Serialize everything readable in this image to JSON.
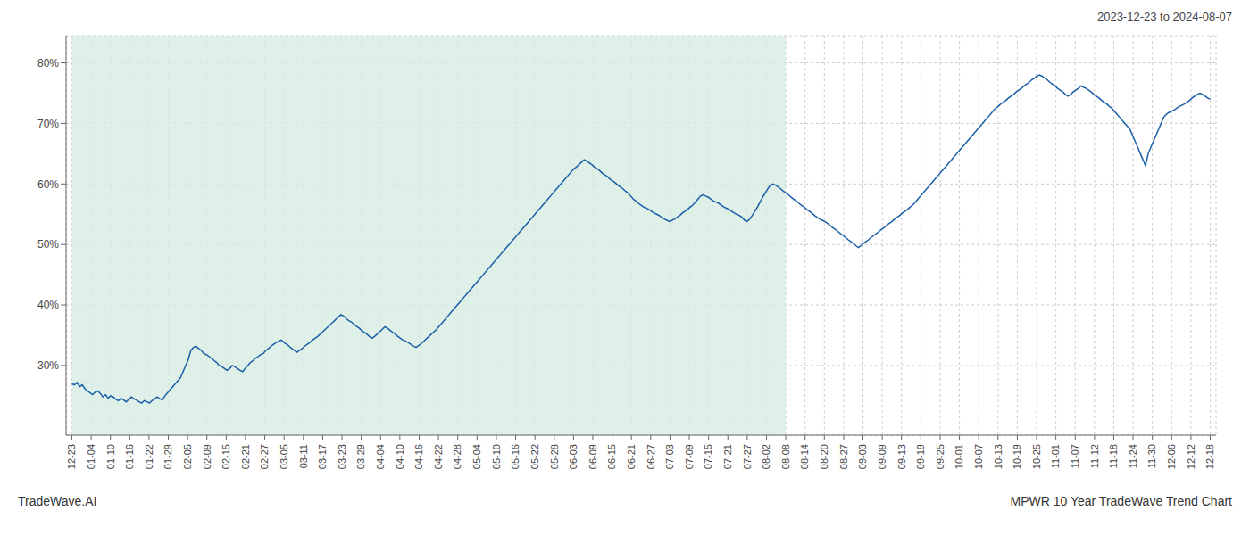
{
  "chart_data": {
    "type": "line",
    "subtitle": "2023-12-23 to 2024-08-07",
    "annotations": [
      "TradeWave.AI",
      "MPWR 10 Year TradeWave Trend Chart"
    ],
    "color": "#1a5fa8",
    "grid": true,
    "shaded": {
      "x": [
        0,
        37
      ],
      "color": "#d6ece1"
    },
    "ylim": [
      0.185,
      0.845
    ],
    "yticks": [
      {
        "value": 0.3,
        "label": "30%"
      },
      {
        "value": 0.4,
        "label": "40%"
      },
      {
        "value": 0.5,
        "label": "50%"
      },
      {
        "value": 0.6,
        "label": "60%"
      },
      {
        "value": 0.7,
        "label": "70%"
      },
      {
        "value": 0.8,
        "label": "80%"
      }
    ],
    "xlim": [
      -0.3,
      59.3
    ],
    "xticks": [
      {
        "value": 0,
        "label": "12-23"
      },
      {
        "value": 1,
        "label": "01-04"
      },
      {
        "value": 2,
        "label": "01-10"
      },
      {
        "value": 3,
        "label": "01-16"
      },
      {
        "value": 4,
        "label": "01-22"
      },
      {
        "value": 5,
        "label": "01-29"
      },
      {
        "value": 6,
        "label": "02-05"
      },
      {
        "value": 7,
        "label": "02-09"
      },
      {
        "value": 8,
        "label": "02-15"
      },
      {
        "value": 9,
        "label": "02-21"
      },
      {
        "value": 10,
        "label": "02-27"
      },
      {
        "value": 11,
        "label": "03-05"
      },
      {
        "value": 12,
        "label": "03-11"
      },
      {
        "value": 13,
        "label": "03-17"
      },
      {
        "value": 14,
        "label": "03-23"
      },
      {
        "value": 15,
        "label": "03-29"
      },
      {
        "value": 16,
        "label": "04-04"
      },
      {
        "value": 17,
        "label": "04-10"
      },
      {
        "value": 18,
        "label": "04-16"
      },
      {
        "value": 19,
        "label": "04-22"
      },
      {
        "value": 20,
        "label": "04-28"
      },
      {
        "value": 21,
        "label": "05-04"
      },
      {
        "value": 22,
        "label": "05-10"
      },
      {
        "value": 23,
        "label": "05-16"
      },
      {
        "value": 24,
        "label": "05-22"
      },
      {
        "value": 25,
        "label": "05-28"
      },
      {
        "value": 26,
        "label": "06-03"
      },
      {
        "value": 27,
        "label": "06-09"
      },
      {
        "value": 28,
        "label": "06-15"
      },
      {
        "value": 29,
        "label": "06-21"
      },
      {
        "value": 30,
        "label": "06-27"
      },
      {
        "value": 31,
        "label": "07-03"
      },
      {
        "value": 32,
        "label": "07-09"
      },
      {
        "value": 33,
        "label": "07-15"
      },
      {
        "value": 34,
        "label": "07-21"
      },
      {
        "value": 35,
        "label": "07-27"
      },
      {
        "value": 36,
        "label": "08-02"
      },
      {
        "value": 37,
        "label": "08-08"
      },
      {
        "value": 38,
        "label": "08-14"
      },
      {
        "value": 39,
        "label": "08-20"
      },
      {
        "value": 40,
        "label": "08-27"
      },
      {
        "value": 41,
        "label": "09-03"
      },
      {
        "value": 42,
        "label": "09-09"
      },
      {
        "value": 43,
        "label": "09-13"
      },
      {
        "value": 44,
        "label": "09-19"
      },
      {
        "value": 45,
        "label": "09-25"
      },
      {
        "value": 46,
        "label": "10-01"
      },
      {
        "value": 47,
        "label": "10-07"
      },
      {
        "value": 48,
        "label": "10-13"
      },
      {
        "value": 49,
        "label": "10-19"
      },
      {
        "value": 50,
        "label": "10-25"
      },
      {
        "value": 51,
        "label": "11-01"
      },
      {
        "value": 52,
        "label": "11-07"
      },
      {
        "value": 53,
        "label": "11-12"
      },
      {
        "value": 54,
        "label": "11-18"
      },
      {
        "value": 55,
        "label": "11-24"
      },
      {
        "value": 56,
        "label": "11-30"
      },
      {
        "value": 57,
        "label": "12-06"
      },
      {
        "value": 58,
        "label": "12-12"
      },
      {
        "value": 59,
        "label": "12-18"
      }
    ],
    "values": [
      0.27,
      0.268,
      0.272,
      0.265,
      0.268,
      0.262,
      0.258,
      0.255,
      0.252,
      0.256,
      0.258,
      0.254,
      0.248,
      0.252,
      0.246,
      0.25,
      0.248,
      0.244,
      0.242,
      0.246,
      0.243,
      0.24,
      0.244,
      0.248,
      0.245,
      0.243,
      0.24,
      0.238,
      0.242,
      0.24,
      0.238,
      0.242,
      0.245,
      0.248,
      0.245,
      0.243,
      0.25,
      0.255,
      0.26,
      0.265,
      0.27,
      0.275,
      0.28,
      0.29,
      0.3,
      0.31,
      0.325,
      0.33,
      0.332,
      0.328,
      0.325,
      0.32,
      0.318,
      0.315,
      0.312,
      0.308,
      0.305,
      0.3,
      0.298,
      0.295,
      0.292,
      0.295,
      0.3,
      0.298,
      0.295,
      0.292,
      0.29,
      0.295,
      0.3,
      0.305,
      0.308,
      0.312,
      0.315,
      0.318,
      0.32,
      0.325,
      0.328,
      0.332,
      0.335,
      0.338,
      0.34,
      0.342,
      0.338,
      0.335,
      0.332,
      0.328,
      0.325,
      0.322,
      0.325,
      0.328,
      0.332,
      0.335,
      0.338,
      0.342,
      0.345,
      0.348,
      0.352,
      0.356,
      0.36,
      0.364,
      0.368,
      0.372,
      0.376,
      0.38,
      0.384,
      0.382,
      0.378,
      0.374,
      0.372,
      0.368,
      0.365,
      0.362,
      0.358,
      0.355,
      0.352,
      0.348,
      0.345,
      0.348,
      0.352,
      0.356,
      0.36,
      0.364,
      0.362,
      0.358,
      0.355,
      0.352,
      0.348,
      0.345,
      0.342,
      0.34,
      0.338,
      0.335,
      0.332,
      0.33,
      0.333,
      0.336,
      0.34,
      0.344,
      0.348,
      0.352,
      0.356,
      0.36,
      0.365,
      0.37,
      0.375,
      0.38,
      0.385,
      0.39,
      0.395,
      0.4,
      0.405,
      0.41,
      0.415,
      0.42,
      0.425,
      0.43,
      0.435,
      0.44,
      0.445,
      0.45,
      0.455,
      0.46,
      0.465,
      0.47,
      0.475,
      0.48,
      0.485,
      0.49,
      0.495,
      0.5,
      0.505,
      0.51,
      0.515,
      0.52,
      0.525,
      0.53,
      0.535,
      0.54,
      0.545,
      0.55,
      0.555,
      0.56,
      0.565,
      0.57,
      0.575,
      0.58,
      0.585,
      0.59,
      0.595,
      0.6,
      0.605,
      0.61,
      0.615,
      0.62,
      0.625,
      0.628,
      0.632,
      0.636,
      0.64,
      0.638,
      0.635,
      0.632,
      0.628,
      0.625,
      0.622,
      0.618,
      0.615,
      0.612,
      0.608,
      0.605,
      0.602,
      0.598,
      0.595,
      0.592,
      0.588,
      0.585,
      0.58,
      0.575,
      0.572,
      0.568,
      0.565,
      0.562,
      0.56,
      0.558,
      0.555,
      0.552,
      0.55,
      0.548,
      0.545,
      0.542,
      0.54,
      0.538,
      0.54,
      0.542,
      0.545,
      0.548,
      0.552,
      0.555,
      0.558,
      0.562,
      0.565,
      0.57,
      0.575,
      0.58,
      0.582,
      0.58,
      0.578,
      0.575,
      0.572,
      0.57,
      0.568,
      0.565,
      0.562,
      0.56,
      0.558,
      0.555,
      0.552,
      0.55,
      0.548,
      0.545,
      0.54,
      0.538,
      0.542,
      0.548,
      0.555,
      0.562,
      0.57,
      0.578,
      0.585,
      0.592,
      0.598,
      0.6,
      0.598,
      0.595,
      0.592,
      0.588,
      0.585,
      0.582,
      0.578,
      0.575,
      0.572,
      0.568,
      0.565,
      0.562,
      0.558,
      0.555,
      0.552,
      0.548,
      0.545,
      0.542,
      0.54,
      0.538,
      0.535,
      0.532,
      0.528,
      0.525,
      0.522,
      0.518,
      0.515,
      0.512,
      0.508,
      0.505,
      0.502,
      0.498,
      0.495,
      0.498,
      0.502,
      0.505,
      0.508,
      0.512,
      0.515,
      0.518,
      0.522,
      0.525,
      0.528,
      0.532,
      0.535,
      0.538,
      0.542,
      0.545,
      0.548,
      0.552,
      0.555,
      0.558,
      0.562,
      0.565,
      0.57,
      0.575,
      0.58,
      0.585,
      0.59,
      0.595,
      0.6,
      0.605,
      0.61,
      0.615,
      0.62,
      0.625,
      0.63,
      0.635,
      0.64,
      0.645,
      0.65,
      0.655,
      0.66,
      0.665,
      0.67,
      0.675,
      0.68,
      0.685,
      0.69,
      0.695,
      0.7,
      0.705,
      0.71,
      0.715,
      0.72,
      0.725,
      0.728,
      0.732,
      0.735,
      0.738,
      0.742,
      0.745,
      0.748,
      0.752,
      0.755,
      0.758,
      0.762,
      0.765,
      0.768,
      0.772,
      0.775,
      0.778,
      0.78,
      0.778,
      0.775,
      0.772,
      0.768,
      0.765,
      0.762,
      0.758,
      0.755,
      0.752,
      0.748,
      0.745,
      0.748,
      0.752,
      0.755,
      0.758,
      0.762,
      0.76,
      0.758,
      0.755,
      0.752,
      0.748,
      0.745,
      0.742,
      0.738,
      0.735,
      0.732,
      0.728,
      0.725,
      0.72,
      0.715,
      0.71,
      0.705,
      0.7,
      0.695,
      0.69,
      0.68,
      0.67,
      0.66,
      0.65,
      0.64,
      0.63,
      0.65,
      0.66,
      0.67,
      0.68,
      0.69,
      0.7,
      0.71,
      0.715,
      0.718,
      0.72,
      0.722,
      0.725,
      0.728,
      0.73,
      0.732,
      0.735,
      0.738,
      0.742,
      0.745,
      0.748,
      0.75,
      0.748,
      0.745,
      0.742,
      0.74
    ]
  }
}
